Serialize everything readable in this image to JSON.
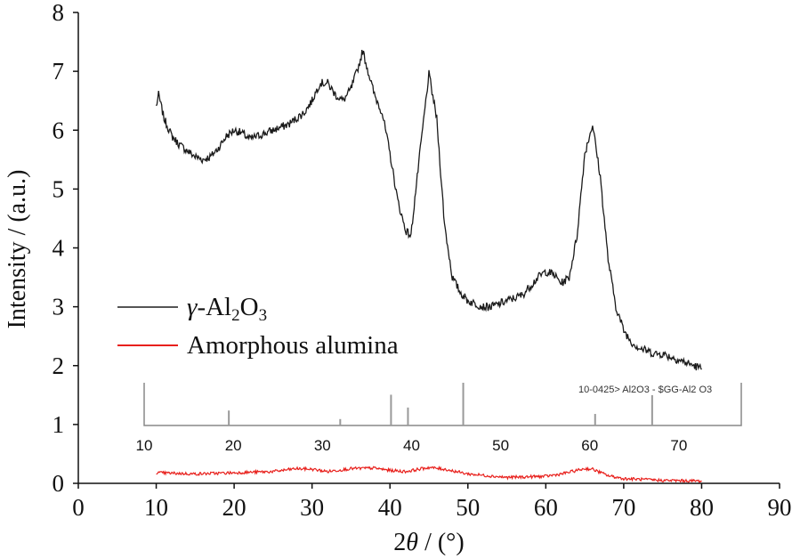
{
  "chart_data": {
    "type": "line",
    "xlabel": {
      "pre": "2",
      "theta": "θ",
      "post": " / (°)"
    },
    "ylabel": "Intensity / (a.u.)",
    "xlim": [
      0,
      90
    ],
    "ylim": [
      0,
      8
    ],
    "x_ticks": [
      0,
      10,
      20,
      30,
      40,
      50,
      60,
      70,
      80,
      90
    ],
    "y_ticks": [
      0,
      1,
      2,
      3,
      4,
      5,
      6,
      7,
      8
    ],
    "legend": {
      "position": "center-left"
    },
    "series": [
      {
        "name_parts": {
          "greek": "γ",
          "a": "-Al",
          "s1": "2",
          "b": "O",
          "s2": "3"
        },
        "color": "#1a1a1a",
        "noise": 0.07,
        "x": [
          10,
          10.3,
          11,
          12,
          13,
          14,
          15,
          16,
          17,
          18,
          19,
          20,
          21,
          22,
          23,
          24,
          25,
          26,
          27,
          28,
          29,
          30,
          31,
          32,
          33,
          34,
          35,
          36,
          36.5,
          37,
          38,
          39,
          40,
          41,
          42,
          42.7,
          43,
          44,
          45,
          46,
          47,
          48,
          49,
          50,
          51,
          52,
          53,
          54,
          55,
          56,
          57,
          58,
          59,
          60,
          61,
          62,
          63,
          64,
          65,
          66,
          67,
          68,
          69,
          70,
          71,
          72,
          73,
          74,
          75,
          76,
          77,
          78,
          79,
          80
        ],
        "y": [
          6.4,
          6.6,
          6.2,
          5.9,
          5.75,
          5.65,
          5.55,
          5.5,
          5.55,
          5.7,
          5.9,
          6.0,
          5.95,
          5.85,
          5.9,
          5.95,
          6.0,
          6.05,
          6.1,
          6.2,
          6.3,
          6.5,
          6.8,
          6.8,
          6.6,
          6.5,
          6.7,
          7.1,
          7.35,
          7.1,
          6.6,
          6.3,
          5.6,
          4.8,
          4.3,
          4.2,
          4.6,
          5.8,
          6.95,
          6.2,
          4.4,
          3.5,
          3.25,
          3.1,
          3.05,
          3.0,
          3.0,
          3.05,
          3.1,
          3.15,
          3.2,
          3.35,
          3.5,
          3.6,
          3.55,
          3.4,
          3.5,
          4.2,
          5.6,
          6.1,
          5.2,
          3.8,
          3.0,
          2.6,
          2.4,
          2.3,
          2.25,
          2.2,
          2.2,
          2.15,
          2.1,
          2.05,
          2.0,
          1.95
        ]
      },
      {
        "name": "Amorphous alumina",
        "color": "#e8201c",
        "noise": 0.025,
        "x": [
          10,
          15,
          20,
          25,
          28,
          30,
          32,
          35,
          38,
          40,
          42,
          45,
          47,
          50,
          55,
          60,
          62,
          65,
          66,
          68,
          70,
          75,
          80
        ],
        "y": [
          0.18,
          0.16,
          0.18,
          0.2,
          0.25,
          0.24,
          0.2,
          0.25,
          0.26,
          0.22,
          0.2,
          0.27,
          0.24,
          0.16,
          0.1,
          0.12,
          0.16,
          0.25,
          0.24,
          0.13,
          0.08,
          0.05,
          0.04
        ]
      }
    ],
    "inset": {
      "card_label": "10-0425> Al2O3 - $GG-Al2 O3",
      "x_ticks": [
        10,
        20,
        30,
        40,
        50,
        60,
        70
      ],
      "xlim": [
        10,
        77
      ],
      "peaks": [
        {
          "x": 19.5,
          "h": 0.35
        },
        {
          "x": 32.0,
          "h": 0.15
        },
        {
          "x": 37.7,
          "h": 0.72
        },
        {
          "x": 39.6,
          "h": 0.42
        },
        {
          "x": 45.8,
          "h": 1.0
        },
        {
          "x": 60.6,
          "h": 0.27
        },
        {
          "x": 67.0,
          "h": 0.71
        }
      ]
    }
  }
}
